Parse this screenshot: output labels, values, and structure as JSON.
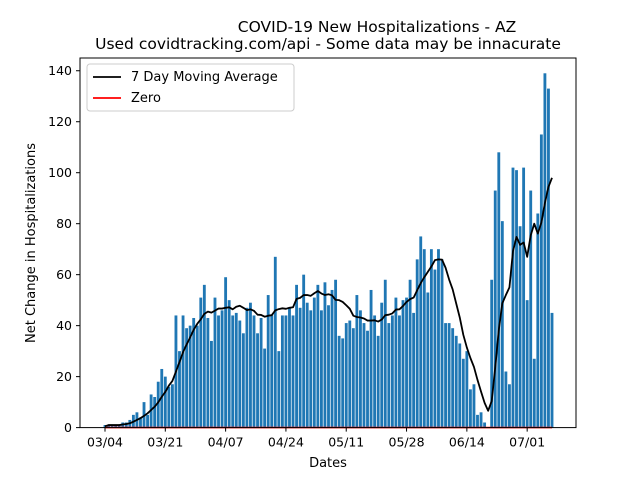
{
  "chart_data": {
    "type": "bar",
    "title": "COVID-19 New Hospitalizations - AZ",
    "subtitle": "Used covidtracking.com/api - Some data may be innacurate",
    "xlabel": "Dates",
    "ylabel": "Net Change in Hospitalizations",
    "ylim": [
      0,
      145
    ],
    "yticks": [
      0,
      20,
      40,
      60,
      80,
      100,
      120,
      140
    ],
    "xticks": [
      "03/04",
      "03/21",
      "04/07",
      "04/24",
      "05/11",
      "05/28",
      "06/14",
      "07/01"
    ],
    "grid": false,
    "legend_position": "top-left",
    "colors": {
      "bars": "#1f77b4",
      "moving_average": "#000000",
      "zero": "#ff0000"
    },
    "bar_series_values": [
      1,
      1,
      1,
      1,
      1,
      2,
      2,
      3,
      5,
      6,
      4,
      10,
      5,
      13,
      12,
      18,
      23,
      20,
      16,
      17,
      44,
      30,
      44,
      39,
      40,
      43,
      40,
      51,
      56,
      43,
      34,
      51,
      44,
      46,
      59,
      50,
      44,
      45,
      42,
      37,
      47,
      49,
      44,
      37,
      43,
      31,
      52,
      44,
      67,
      30,
      44,
      44,
      47,
      44,
      56,
      47,
      60,
      49,
      46,
      51,
      56,
      46,
      57,
      48,
      54,
      58,
      36,
      35,
      41,
      42,
      39,
      52,
      46,
      41,
      38,
      54,
      44,
      36,
      49,
      58,
      41,
      44,
      51,
      44,
      50,
      51,
      58,
      45,
      66,
      75,
      70,
      53,
      70,
      62,
      70,
      66,
      41,
      41,
      39,
      36,
      33,
      27,
      30,
      15,
      17,
      5,
      6,
      2,
      0,
      58,
      93,
      108,
      81,
      22,
      17,
      102,
      101,
      79,
      102,
      50,
      93,
      27,
      84,
      115,
      139,
      133,
      45
    ],
    "series": [
      {
        "name": "7 Day Moving Average",
        "values": [
          0.5,
          1.0,
          1.0,
          1.0,
          1.0,
          1.2,
          1.4,
          1.7,
          2.3,
          3.0,
          3.7,
          4.6,
          5.6,
          6.9,
          8.2,
          9.9,
          12.1,
          14.0,
          16.5,
          18.3,
          22.0,
          25.7,
          29.6,
          32.6,
          35.4,
          38.4,
          40.7,
          42.5,
          44.6,
          45.5,
          45.1,
          45.9,
          46.7,
          46.7,
          47.0,
          47.2,
          46.4,
          47.4,
          47.8,
          47.0,
          46.1,
          46.4,
          45.8,
          44.3,
          44.2,
          43.5,
          43.9,
          44.1,
          46.0,
          46.5,
          46.8,
          46.6,
          47.0,
          47.2,
          50.5,
          50.9,
          52.0,
          52.0,
          51.7,
          52.7,
          53.6,
          52.6,
          52.0,
          52.3,
          51.9,
          50.1,
          50.0,
          49.3,
          48.0,
          46.6,
          43.9,
          43.4,
          43.2,
          42.8,
          42.0,
          42.0,
          42.1,
          41.6,
          42.4,
          44.1,
          44.3,
          44.8,
          46.3,
          46.4,
          47.7,
          49.3,
          50.4,
          51.0,
          53.9,
          56.7,
          59.0,
          61.1,
          63.2,
          65.7,
          66.0,
          65.9,
          62.7,
          58.1,
          54.2,
          48.7,
          43.2,
          36.4,
          31.4,
          27.3,
          23.8,
          18.7,
          14.1,
          9.7,
          6.6,
          10.4,
          23.6,
          38.3,
          48.8,
          52.0,
          55.0,
          69.2,
          74.8,
          71.7,
          72.6,
          67.0,
          75.4,
          80.0,
          76.1,
          80.4,
          88.1,
          94.4,
          98.0
        ]
      },
      {
        "name": "Zero",
        "values": [
          0
        ]
      }
    ]
  }
}
